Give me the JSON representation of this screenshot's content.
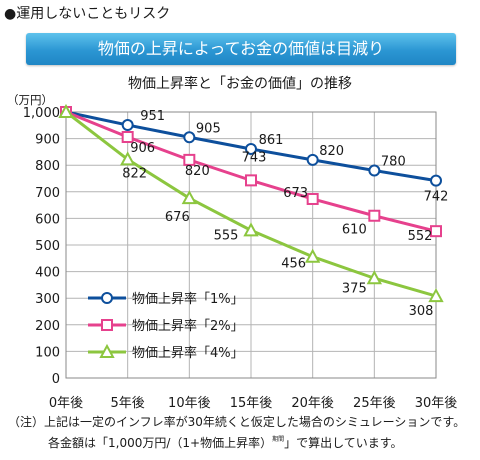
{
  "section_heading": "●運用しないこともリスク",
  "banner": "物価の上昇によってお金の価値は目減り",
  "chart_data": {
    "type": "line",
    "title": "物価上昇率と「お金の価値」の推移",
    "ylabel": "（万円）",
    "xlabel": "",
    "categories": [
      "0年後",
      "5年後",
      "10年後",
      "15年後",
      "20年後",
      "25年後",
      "30年後"
    ],
    "y_ticks": [
      "0",
      "100",
      "200",
      "300",
      "400",
      "500",
      "600",
      "700",
      "800",
      "900",
      "1,000"
    ],
    "ylim": [
      0,
      1000
    ],
    "grid": true,
    "legend_position": "lower-left",
    "series": [
      {
        "name": "物価上昇率「1%」",
        "color": "#0d4f9c",
        "marker": "circle",
        "values": [
          1000,
          951,
          905,
          861,
          820,
          780,
          742
        ],
        "labels": [
          "",
          "951",
          "905",
          "861",
          "820",
          "780",
          "742"
        ]
      },
      {
        "name": "物価上昇率「2%」",
        "color": "#e6418d",
        "marker": "square",
        "values": [
          1000,
          906,
          820,
          743,
          673,
          610,
          552
        ],
        "labels": [
          "",
          "906",
          "820",
          "743",
          "673",
          "610",
          "552"
        ]
      },
      {
        "name": "物価上昇率「4%」",
        "color": "#8cc63f",
        "marker": "triangle",
        "values": [
          1000,
          822,
          676,
          555,
          456,
          375,
          308
        ],
        "labels": [
          "",
          "822",
          "676",
          "555",
          "456",
          "375",
          "308"
        ]
      }
    ]
  },
  "footnote": {
    "line1": "（注）上記は一定のインフレ率が30年続くと仮定した場合のシミュレーションです。",
    "line2_pre": "各金額は「1,000万円/（1+物価上昇率）",
    "line2_sup": "期間",
    "line2_post": "」で算出しています。"
  }
}
